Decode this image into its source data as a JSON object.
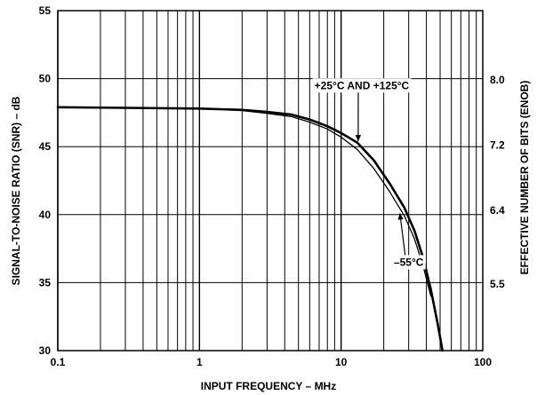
{
  "chart_data": {
    "type": "line",
    "x_scale": "log",
    "xlim": [
      0.1,
      100
    ],
    "ylim": [
      30,
      55
    ],
    "y2lim_display": [
      "5.5",
      "6.4",
      "7.2",
      "8.0"
    ],
    "grid": true,
    "xlabel": "INPUT FREQUENCY – MHz",
    "ylabel": "SIGNAL-TO-NOISE RATIO (SNR) – dB",
    "y2label": "EFFECTIVE NUMBER OF BITS (ENOB)",
    "x_ticks": [
      {
        "value": 0.1,
        "label": "0.1"
      },
      {
        "value": 1,
        "label": "1"
      },
      {
        "value": 10,
        "label": "10"
      },
      {
        "value": 100,
        "label": "100"
      }
    ],
    "y_ticks": [
      {
        "value": 30,
        "label": "30"
      },
      {
        "value": 35,
        "label": "35"
      },
      {
        "value": 40,
        "label": "40"
      },
      {
        "value": 45,
        "label": "45"
      },
      {
        "value": 50,
        "label": "50"
      },
      {
        "value": 55,
        "label": "55"
      }
    ],
    "y2_ticks": [
      {
        "value": 34.9,
        "label": "5.5"
      },
      {
        "value": 40.3,
        "label": "6.4"
      },
      {
        "value": 45.1,
        "label": "7.2"
      },
      {
        "value": 49.9,
        "label": "8.0"
      }
    ],
    "series": [
      {
        "name": "+25°C AND +125°C",
        "stroke": "#000000",
        "stroke_width": 2.6,
        "x": [
          0.1,
          0.3,
          1,
          2,
          3,
          4.5,
          6,
          8,
          10,
          13,
          17,
          22,
          28,
          33,
          38,
          43,
          48,
          52
        ],
        "y": [
          47.9,
          47.85,
          47.8,
          47.7,
          47.55,
          47.35,
          47.0,
          46.5,
          46.0,
          45.3,
          44.0,
          42.3,
          40.5,
          38.8,
          36.8,
          34.5,
          32.0,
          30.0
        ]
      },
      {
        "name": "–55°C",
        "stroke": "#000000",
        "stroke_width": 1.3,
        "x": [
          0.1,
          0.3,
          1,
          2,
          3,
          4.5,
          6,
          8,
          10,
          13,
          17,
          22,
          28,
          33,
          38,
          43
        ],
        "y": [
          47.9,
          47.85,
          47.8,
          47.65,
          47.45,
          47.2,
          46.8,
          46.3,
          45.7,
          44.8,
          43.4,
          41.7,
          39.9,
          38.2,
          36.2,
          34.0
        ]
      }
    ],
    "annotations": [
      {
        "text": "+25°C AND +125°C",
        "x": 14,
        "y": 49.5,
        "arrow_x": 13.2,
        "arrow_y": 45.4
      },
      {
        "text": "–55°C",
        "x": 30,
        "y": 36.5,
        "arrow_x": 26,
        "arrow_y": 40.1
      }
    ]
  }
}
